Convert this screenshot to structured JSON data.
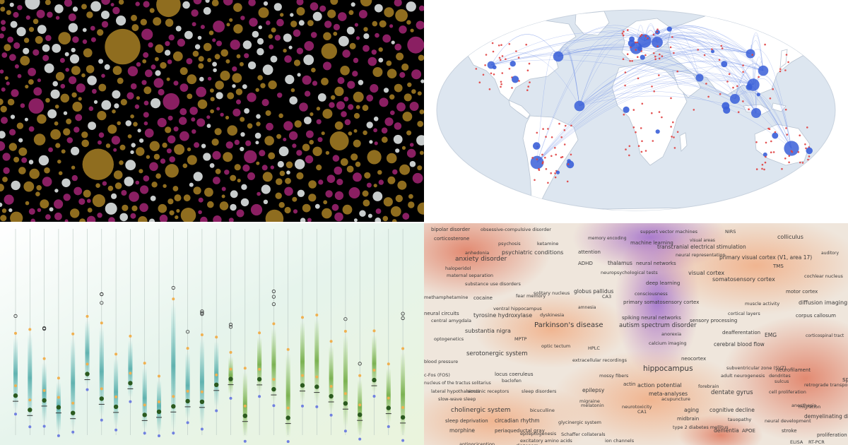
{
  "colors": {
    "bubble_bg": "#000000",
    "bubble_magenta": "#8a1f62",
    "bubble_gold": "#8f6d1f",
    "bubble_white": "#c8cccc",
    "ocean": "#dde6f0",
    "land": "#ffffff",
    "route": "#6f8fe6",
    "city_large": "#3a5fd8",
    "city_small": "#e04040",
    "box_teal": "#6cc4c0",
    "box_green": "#8cc45a",
    "median_dark": "#2b5a1f",
    "point_orange": "#f0b050",
    "point_blue": "#7080e0",
    "heat_red": "#e88a70",
    "heat_purple": "#9a7ad0",
    "heat_beige": "#e7d6c3"
  },
  "panels": [
    {
      "id": "bubbles",
      "type": "packed-bubble-field"
    },
    {
      "id": "map",
      "type": "world-flight-routes-map"
    },
    {
      "id": "boxplots",
      "type": "box-and-whisker-strips"
    },
    {
      "id": "wordmap",
      "type": "term-density-word-map"
    }
  ],
  "wordmap": {
    "terms": [
      {
        "text": "bipolar disorder"
      },
      {
        "text": "obsessive-compulsive disorder"
      },
      {
        "text": "support vector machines"
      },
      {
        "text": "NIRS"
      },
      {
        "text": "colliculus"
      },
      {
        "text": "corticosterone"
      },
      {
        "text": "psychosis"
      },
      {
        "text": "ketamine"
      },
      {
        "text": "memory encoding"
      },
      {
        "text": "visual areas"
      },
      {
        "text": "anhedonia"
      },
      {
        "text": "psychiatric conditions"
      },
      {
        "text": "attention"
      },
      {
        "text": "machine learning"
      },
      {
        "text": "transcranial electrical stimulation"
      },
      {
        "text": "auditory"
      },
      {
        "text": "anxiety disorder"
      },
      {
        "text": "neural representation"
      },
      {
        "text": "primary visual cortex (V1, area 17)"
      },
      {
        "text": "haloperidol"
      },
      {
        "text": "ADHD"
      },
      {
        "text": "thalamus"
      },
      {
        "text": "neural networks"
      },
      {
        "text": "TMS"
      },
      {
        "text": "maternal separation"
      },
      {
        "text": "neuropsychological tests"
      },
      {
        "text": "visual cortex"
      },
      {
        "text": "cochlear nucleus"
      },
      {
        "text": "substance use disorders"
      },
      {
        "text": "deep learning"
      },
      {
        "text": "somatosensory cortex"
      },
      {
        "text": "methamphetamine"
      },
      {
        "text": "cocaine"
      },
      {
        "text": "fear memory"
      },
      {
        "text": "globus pallidus"
      },
      {
        "text": "consciousness"
      },
      {
        "text": "motor cortex"
      },
      {
        "text": "ventral hippocampus"
      },
      {
        "text": "primary somatosensory cortex"
      },
      {
        "text": "muscle activity"
      },
      {
        "text": "diffusion imaging"
      },
      {
        "text": "neural circuits"
      },
      {
        "text": "amnesia"
      },
      {
        "text": "tyrosine hydroxylase"
      },
      {
        "text": "dyskinesia"
      },
      {
        "text": "cortical layers"
      },
      {
        "text": "central amygdala"
      },
      {
        "text": "spiking neural networks"
      },
      {
        "text": "corpus callosum"
      },
      {
        "text": "Parkinson's disease"
      },
      {
        "text": "autism spectrum disorder"
      },
      {
        "text": "sensory processing"
      },
      {
        "text": "substantia nigra"
      },
      {
        "text": "deafferentation"
      },
      {
        "text": "EMG"
      },
      {
        "text": "corticospinal tract"
      },
      {
        "text": "optogenetics"
      },
      {
        "text": "MPTP"
      },
      {
        "text": "calcium imaging"
      },
      {
        "text": "cerebral blood flow"
      },
      {
        "text": "serotonergic system"
      },
      {
        "text": "neocortex"
      },
      {
        "text": "blood pressure"
      },
      {
        "text": "extracellular recordings"
      },
      {
        "text": "hippocampus"
      },
      {
        "text": "subventricular zone (SVZ)"
      },
      {
        "text": "neurofilament"
      },
      {
        "text": "c-Fos (FOS)"
      },
      {
        "text": "locus coeruleus"
      },
      {
        "text": "mossy fibers"
      },
      {
        "text": "adult neurogenesis"
      },
      {
        "text": "nucleus of the tractus solitarius"
      },
      {
        "text": "baclofen"
      },
      {
        "text": "action potential"
      },
      {
        "text": "forebrain"
      },
      {
        "text": "retrograde transport"
      },
      {
        "text": "lateral hypothalamus"
      },
      {
        "text": "nicotinic receptors"
      },
      {
        "text": "sleep disorders"
      },
      {
        "text": "epilepsy"
      },
      {
        "text": "meta-analyses"
      },
      {
        "text": "dentate gyrus"
      },
      {
        "text": "cell proliferation"
      },
      {
        "text": "slow-wave sleep"
      },
      {
        "text": "migraine"
      },
      {
        "text": "acupuncture"
      },
      {
        "text": "cholinergic system"
      },
      {
        "text": "bicuculline"
      },
      {
        "text": "aging"
      },
      {
        "text": "cognitive decline"
      },
      {
        "text": "migration"
      },
      {
        "text": "sleep deprivation"
      },
      {
        "text": "circadian rhythm"
      },
      {
        "text": "CA1"
      },
      {
        "text": "tauopathy"
      },
      {
        "text": "neural development"
      },
      {
        "text": "demyelinating disease"
      },
      {
        "text": "morphine"
      },
      {
        "text": "periaqueductal gray"
      },
      {
        "text": "glycinergic system"
      },
      {
        "text": "type 2 diabetes mellitus"
      },
      {
        "text": "dementia"
      },
      {
        "text": "APOE"
      },
      {
        "text": "stroke"
      },
      {
        "text": "epileptogenesis"
      },
      {
        "text": "Schaffer collaterals"
      },
      {
        "text": "excitatory amino acids"
      },
      {
        "text": "ion channels"
      },
      {
        "text": "ELISA"
      },
      {
        "text": "RT-PCR"
      },
      {
        "text": "antinociception"
      },
      {
        "text": "diazepam"
      },
      {
        "text": "spine"
      },
      {
        "text": "proliferation"
      },
      {
        "text": "melatonin"
      },
      {
        "text": "HPLC"
      },
      {
        "text": "anorexia"
      },
      {
        "text": "optic tectum"
      },
      {
        "text": "neurotoxicity"
      },
      {
        "text": "midbrain"
      },
      {
        "text": "dendrites"
      },
      {
        "text": "sulcus"
      },
      {
        "text": "actin"
      },
      {
        "text": "CA3"
      },
      {
        "text": "anesthesia"
      },
      {
        "text": "solitary nucleus"
      }
    ]
  }
}
